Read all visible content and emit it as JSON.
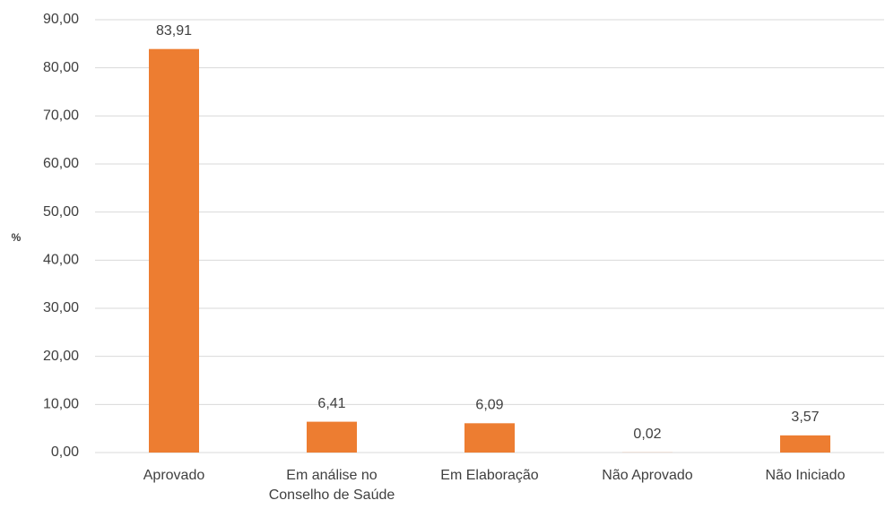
{
  "chart_data": {
    "type": "bar",
    "y_label": "%",
    "categories": [
      "Aprovado",
      "Em análise no Conselho de Saúde",
      "Em Elaboração",
      "Não Aprovado",
      "Não Iniciado"
    ],
    "values": [
      83.91,
      6.41,
      6.09,
      0.02,
      3.57
    ],
    "value_labels": [
      "83,91",
      "6,41",
      "6,09",
      "0,02",
      "3,57"
    ],
    "color": "#ed7d31",
    "ylim": [
      0,
      90
    ],
    "yticks": [
      {
        "value": 0,
        "label": "0,00"
      },
      {
        "value": 10,
        "label": "10,00"
      },
      {
        "value": 20,
        "label": "20,00"
      },
      {
        "value": 30,
        "label": "30,00"
      },
      {
        "value": 40,
        "label": "40,00"
      },
      {
        "value": 50,
        "label": "50,00"
      },
      {
        "value": 60,
        "label": "60,00"
      },
      {
        "value": 70,
        "label": "70,00"
      },
      {
        "value": 80,
        "label": "80,00"
      },
      {
        "value": 90,
        "label": "90,00"
      }
    ],
    "grid": true
  }
}
